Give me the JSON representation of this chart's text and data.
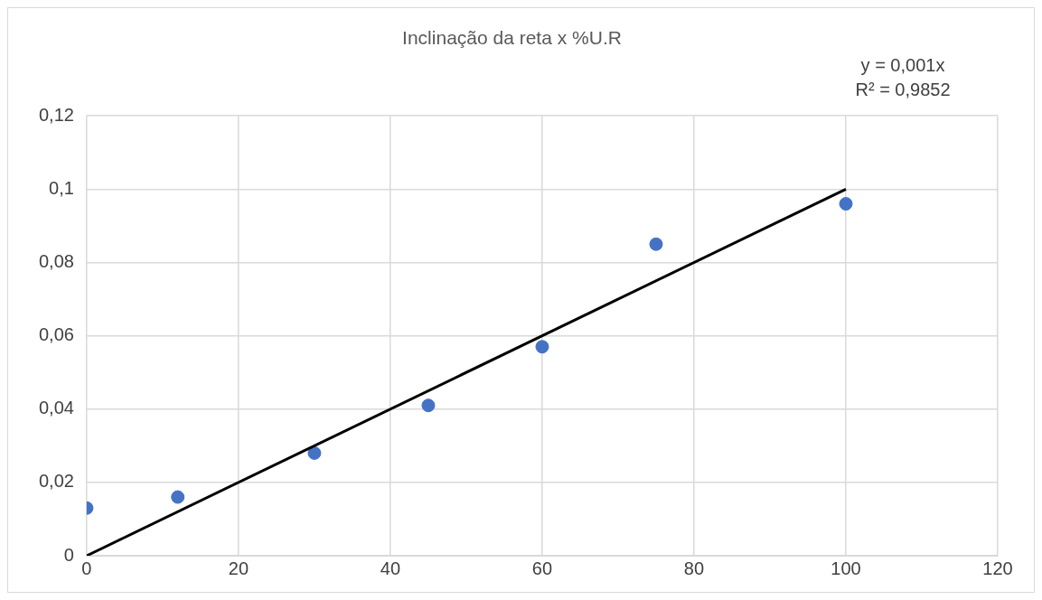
{
  "chart_data": {
    "type": "scatter",
    "title": "Inclinação da reta x %U.R",
    "annotations": [
      "y = 0,001x",
      "R² = 0,9852"
    ],
    "series": [
      {
        "type": "scatter",
        "color": "#4472c4",
        "x": [
          0,
          12,
          30,
          45,
          60,
          75,
          100
        ],
        "values": [
          0.013,
          0.016,
          0.028,
          0.041,
          0.057,
          0.085,
          0.096
        ]
      },
      {
        "type": "line",
        "color": "#000000",
        "x": [
          0,
          100
        ],
        "values": [
          0,
          0.1
        ],
        "marker": "none"
      }
    ],
    "marker": "circle",
    "legend": false,
    "grid": true,
    "xlim": [
      0,
      120
    ],
    "xticks": [
      0,
      20,
      40,
      60,
      80,
      100,
      120
    ],
    "ylim": [
      0,
      0.12
    ],
    "yticks": [
      0,
      {
        "value": 0.02,
        "label": "0,02"
      },
      {
        "value": 0.04,
        "label": "0,04"
      },
      {
        "value": 0.06,
        "label": "0,06"
      },
      {
        "value": 0.08,
        "label": "0,08"
      },
      {
        "value": 0.1,
        "label": "0,1"
      },
      {
        "value": 0.12,
        "label": "0,12"
      }
    ]
  }
}
